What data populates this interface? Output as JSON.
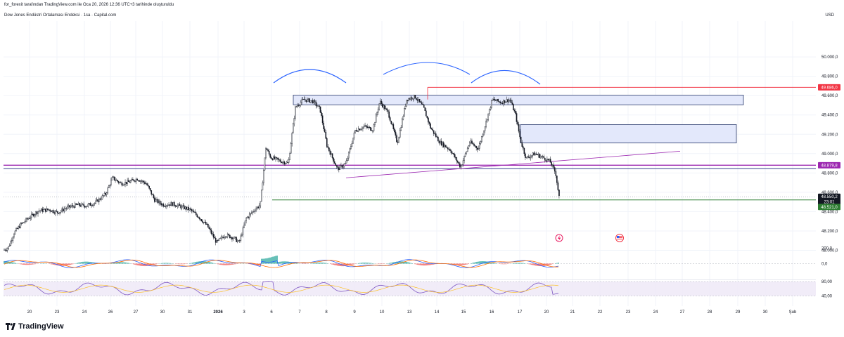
{
  "header": {
    "created_by": "for_forexit tarafından TradingView.com ile Oca 20, 2026 12:36 UTC+3 tarihinde oluşturuldu",
    "symbol_title": "Dow Jones Endüstri Ortalaması Endeksi · 1sa · Capital.com",
    "currency": "USD"
  },
  "footer": {
    "brand": "TradingView"
  },
  "colors": {
    "up": "#089981",
    "down": "#f23645",
    "candle": "#131722",
    "resistance": "#f23645",
    "support": "#2e7d32",
    "purple": "#9c27b0",
    "arc": "#2962ff",
    "zone_fill": "#e3e8fb",
    "zone_stroke": "#2a3a6b",
    "macd": "#2962ff",
    "signal": "#ff6d00",
    "rsi": "#7e57c2"
  },
  "icons": [
    "lightning-event-icon",
    "us-flag-event-icon"
  ],
  "chart_data": {
    "type": "candlestick",
    "price_axis": {
      "ticks": [
        "50.000,0",
        "49.800,0",
        "49.600,0",
        "49.400,0",
        "49.200,0",
        "49.000,0",
        "48.800,0",
        "48.600,0",
        "48.400,0",
        "48.200,0",
        "48.000,0"
      ],
      "range": [
        47930,
        50080
      ]
    },
    "time_axis": {
      "ticks": [
        "20",
        "23",
        "24",
        "26",
        "27",
        "30",
        "31",
        "2026",
        "3",
        "6",
        "7",
        "8",
        "9",
        "10",
        "13",
        "14",
        "15",
        "16",
        "17",
        "20",
        "21",
        "22",
        "23",
        "24",
        "27",
        "28",
        "29",
        "30",
        "Şub"
      ]
    },
    "price_labels": {
      "resistance": "49.686,0",
      "neckline": "48.879,8",
      "last": "48.550,2",
      "countdown": "23:01",
      "support": "48.521,0"
    },
    "levels": {
      "resistance": 49686,
      "neckline": 48879.8,
      "last": 48550.2,
      "support": 48521,
      "lower_neckline": 48845
    },
    "zones": [
      {
        "x_from": "7",
        "x_to": "29",
        "from": 49505,
        "to": 49605
      },
      {
        "x_from": "17",
        "x_to": "29",
        "from": 49110,
        "to": 49300
      }
    ],
    "trendline": {
      "x_from": "8",
      "x_to": "27",
      "from": 48750,
      "to": 49025
    },
    "arcs": [
      "shoulder-left",
      "head",
      "shoulder-right"
    ],
    "waypoints": [
      [
        0,
        47980
      ],
      [
        12,
        48030
      ],
      [
        20,
        48180
      ],
      [
        30,
        48270
      ],
      [
        40,
        48330
      ],
      [
        55,
        48410
      ],
      [
        70,
        48420
      ],
      [
        82,
        48390
      ],
      [
        95,
        48440
      ],
      [
        110,
        48470
      ],
      [
        122,
        48460
      ],
      [
        135,
        48490
      ],
      [
        150,
        48580
      ],
      [
        160,
        48750
      ],
      [
        172,
        48690
      ],
      [
        185,
        48710
      ],
      [
        195,
        48740
      ],
      [
        208,
        48690
      ],
      [
        220,
        48520
      ],
      [
        232,
        48470
      ],
      [
        245,
        48480
      ],
      [
        258,
        48450
      ],
      [
        270,
        48420
      ],
      [
        282,
        48350
      ],
      [
        295,
        48250
      ],
      [
        308,
        48080
      ],
      [
        320,
        48160
      ],
      [
        332,
        48130
      ],
      [
        340,
        48080
      ],
      [
        350,
        48330
      ],
      [
        362,
        48420
      ],
      [
        370,
        48470
      ],
      [
        378,
        49060
      ],
      [
        385,
        48960
      ],
      [
        400,
        48920
      ],
      [
        410,
        48900
      ],
      [
        420,
        49480
      ],
      [
        432,
        49560
      ],
      [
        445,
        49540
      ],
      [
        455,
        49460
      ],
      [
        465,
        49080
      ],
      [
        480,
        48840
      ],
      [
        492,
        48900
      ],
      [
        505,
        49240
      ],
      [
        518,
        49280
      ],
      [
        530,
        49250
      ],
      [
        540,
        49540
      ],
      [
        552,
        49420
      ],
      [
        565,
        49110
      ],
      [
        578,
        49560
      ],
      [
        590,
        49590
      ],
      [
        602,
        49480
      ],
      [
        612,
        49270
      ],
      [
        625,
        49120
      ],
      [
        640,
        49040
      ],
      [
        655,
        48860
      ],
      [
        668,
        49120
      ],
      [
        680,
        49050
      ],
      [
        690,
        49300
      ],
      [
        700,
        49560
      ],
      [
        712,
        49530
      ],
      [
        725,
        49560
      ],
      [
        733,
        49400
      ],
      [
        740,
        49140
      ],
      [
        748,
        48950
      ],
      [
        760,
        49000
      ],
      [
        772,
        48960
      ],
      [
        782,
        48920
      ],
      [
        790,
        48800
      ],
      [
        795,
        48550
      ]
    ],
    "macd": {
      "levels": [
        "200,0",
        "0,0"
      ]
    },
    "rsi": {
      "levels": [
        "80,00",
        "40,00"
      ]
    }
  }
}
